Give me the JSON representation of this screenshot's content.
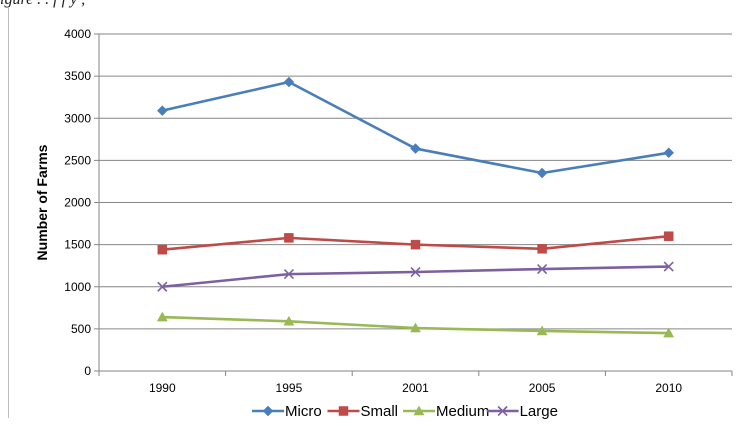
{
  "caption": "igure   .      .     f f   y      ,",
  "chart_data": {
    "type": "line",
    "categories": [
      "1990",
      "1995",
      "2001",
      "2005",
      "2010"
    ],
    "ylabel": "Number of Farms",
    "xlabel": "",
    "ylim": [
      0,
      4000
    ],
    "yticks": [
      0,
      500,
      1000,
      1500,
      2000,
      2500,
      3000,
      3500,
      4000
    ],
    "grid": true,
    "legend_position": "bottom",
    "series": [
      {
        "name": "Micro",
        "values": [
          3090,
          3430,
          2640,
          2350,
          2590
        ],
        "color": "#4a7ebb",
        "marker": "diamond"
      },
      {
        "name": "Small",
        "values": [
          1440,
          1580,
          1500,
          1450,
          1600
        ],
        "color": "#be4b48",
        "marker": "square"
      },
      {
        "name": "Medium",
        "values": [
          640,
          590,
          510,
          475,
          450
        ],
        "color": "#98b954",
        "marker": "triangle"
      },
      {
        "name": "Large",
        "values": [
          1000,
          1150,
          1175,
          1210,
          1240
        ],
        "color": "#7d60a0",
        "marker": "x"
      }
    ]
  }
}
